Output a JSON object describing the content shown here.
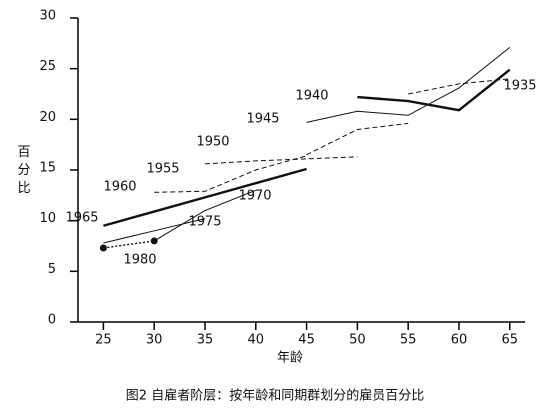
{
  "chart_data": {
    "type": "line",
    "caption": "图2 自雇者阶层：按年龄和同期群划分的雇员百分比",
    "x_label": "年龄",
    "y_label": "百分比",
    "xlim": [
      22.5,
      66.5
    ],
    "xticks": [
      25,
      30,
      35,
      40,
      45,
      50,
      55,
      60,
      65
    ],
    "ylim": [
      0,
      30
    ],
    "yticks": [
      0,
      5,
      10,
      15,
      20,
      25,
      30
    ],
    "series": [
      {
        "name": "1935",
        "color": "#111111",
        "style": "dashed",
        "x": [
          55,
          60,
          65
        ],
        "values": [
          22.5,
          23.5,
          24.0
        ]
      },
      {
        "name": "1940",
        "color": "#111111",
        "style": "thick",
        "x": [
          50,
          55,
          60,
          65
        ],
        "values": [
          22.2,
          21.8,
          20.9,
          24.9
        ]
      },
      {
        "name": "1945",
        "color": "#111111",
        "style": "solid",
        "x": [
          45,
          50,
          55,
          60,
          65
        ],
        "values": [
          19.7,
          20.8,
          20.4,
          23.1,
          27.1
        ]
      },
      {
        "name": "1950",
        "color": "#111111",
        "style": "dashed",
        "x": [
          45,
          50,
          55
        ],
        "values": [
          16.5,
          19.0,
          19.6
        ]
      },
      {
        "name": "1955",
        "color": "#111111",
        "style": "dashed",
        "x": [
          35,
          40,
          45,
          50
        ],
        "values": [
          15.6,
          15.9,
          16.1,
          16.3
        ]
      },
      {
        "name": "1960",
        "color": "#111111",
        "style": "dashed",
        "x": [
          30,
          35,
          40,
          45
        ],
        "values": [
          12.8,
          12.9,
          15.0,
          16.4
        ]
      },
      {
        "name": "1965",
        "color": "#111111",
        "style": "thick",
        "x": [
          25,
          30,
          35,
          40,
          45
        ],
        "values": [
          9.5,
          10.9,
          12.3,
          13.7,
          15.1
        ]
      },
      {
        "name": "1970",
        "color": "#111111",
        "style": "solid",
        "x": [
          25,
          30,
          35
        ],
        "values": [
          7.8,
          9.0,
          10.2
        ]
      },
      {
        "name": "1975",
        "color": "#111111",
        "style": "solid",
        "x": [
          30,
          35,
          40
        ],
        "values": [
          8.0,
          11.0,
          13.0
        ]
      },
      {
        "name": "1980",
        "color": "#111111",
        "style": "dotted",
        "x": [
          25,
          30
        ],
        "values": [
          7.3,
          8.0
        ]
      }
    ]
  }
}
